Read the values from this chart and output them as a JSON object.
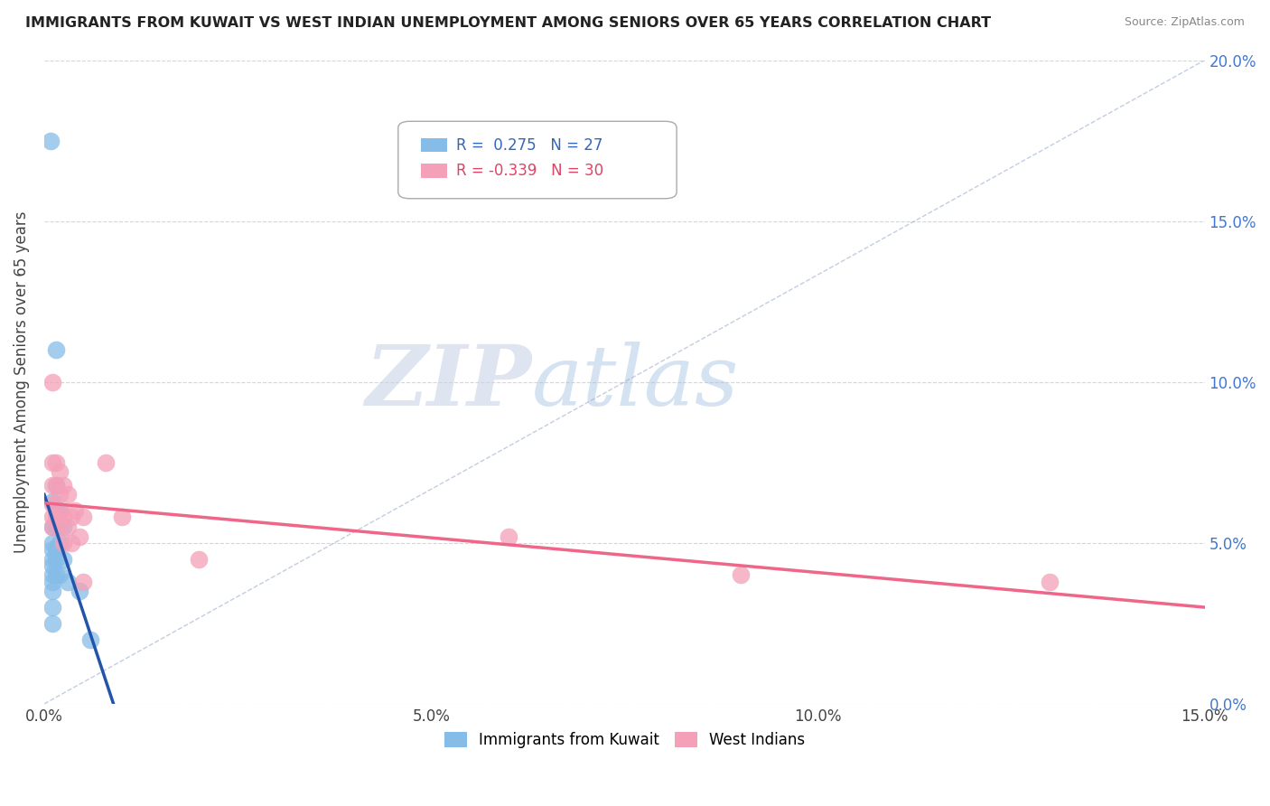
{
  "title": "IMMIGRANTS FROM KUWAIT VS WEST INDIAN UNEMPLOYMENT AMONG SENIORS OVER 65 YEARS CORRELATION CHART",
  "source": "Source: ZipAtlas.com",
  "ylabel": "Unemployment Among Seniors over 65 years",
  "legend_label1": "Immigrants from Kuwait",
  "legend_label2": "West Indians",
  "R1": 0.275,
  "N1": 27,
  "R2": -0.339,
  "N2": 30,
  "xlim": [
    0,
    0.15
  ],
  "ylim": [
    0,
    0.2
  ],
  "xticks": [
    0.0,
    0.05,
    0.1,
    0.15
  ],
  "xticklabels": [
    "0.0%",
    "5.0%",
    "10.0%",
    "15.0%"
  ],
  "yticks": [
    0.0,
    0.05,
    0.1,
    0.15,
    0.2
  ],
  "yticklabels_right": [
    "0.0%",
    "5.0%",
    "10.0%",
    "15.0%",
    "20.0%"
  ],
  "color_blue": "#85BCE8",
  "color_pink": "#F4A0B8",
  "color_line_blue": "#2255AA",
  "color_line_pink": "#EE6688",
  "background": "#FFFFFF",
  "watermark_zip": "ZIP",
  "watermark_atlas": "atlas",
  "blue_points": [
    [
      0.0008,
      0.175
    ],
    [
      0.001,
      0.063
    ],
    [
      0.001,
      0.055
    ],
    [
      0.001,
      0.05
    ],
    [
      0.001,
      0.048
    ],
    [
      0.001,
      0.045
    ],
    [
      0.001,
      0.043
    ],
    [
      0.001,
      0.04
    ],
    [
      0.001,
      0.038
    ],
    [
      0.001,
      0.035
    ],
    [
      0.001,
      0.03
    ],
    [
      0.001,
      0.025
    ],
    [
      0.0015,
      0.11
    ],
    [
      0.0015,
      0.068
    ],
    [
      0.0015,
      0.06
    ],
    [
      0.0015,
      0.055
    ],
    [
      0.0015,
      0.048
    ],
    [
      0.0015,
      0.045
    ],
    [
      0.0015,
      0.04
    ],
    [
      0.002,
      0.06
    ],
    [
      0.002,
      0.05
    ],
    [
      0.002,
      0.04
    ],
    [
      0.0025,
      0.055
    ],
    [
      0.0025,
      0.045
    ],
    [
      0.003,
      0.038
    ],
    [
      0.0045,
      0.035
    ],
    [
      0.006,
      0.02
    ]
  ],
  "pink_points": [
    [
      0.001,
      0.1
    ],
    [
      0.001,
      0.075
    ],
    [
      0.001,
      0.068
    ],
    [
      0.001,
      0.062
    ],
    [
      0.001,
      0.058
    ],
    [
      0.001,
      0.055
    ],
    [
      0.0015,
      0.075
    ],
    [
      0.0015,
      0.068
    ],
    [
      0.0015,
      0.058
    ],
    [
      0.002,
      0.072
    ],
    [
      0.002,
      0.065
    ],
    [
      0.002,
      0.06
    ],
    [
      0.002,
      0.055
    ],
    [
      0.0025,
      0.068
    ],
    [
      0.0025,
      0.058
    ],
    [
      0.0025,
      0.05
    ],
    [
      0.003,
      0.065
    ],
    [
      0.003,
      0.055
    ],
    [
      0.0035,
      0.058
    ],
    [
      0.0035,
      0.05
    ],
    [
      0.004,
      0.06
    ],
    [
      0.0045,
      0.052
    ],
    [
      0.005,
      0.058
    ],
    [
      0.005,
      0.038
    ],
    [
      0.008,
      0.075
    ],
    [
      0.01,
      0.058
    ],
    [
      0.02,
      0.045
    ],
    [
      0.06,
      0.052
    ],
    [
      0.09,
      0.04
    ],
    [
      0.13,
      0.038
    ]
  ]
}
